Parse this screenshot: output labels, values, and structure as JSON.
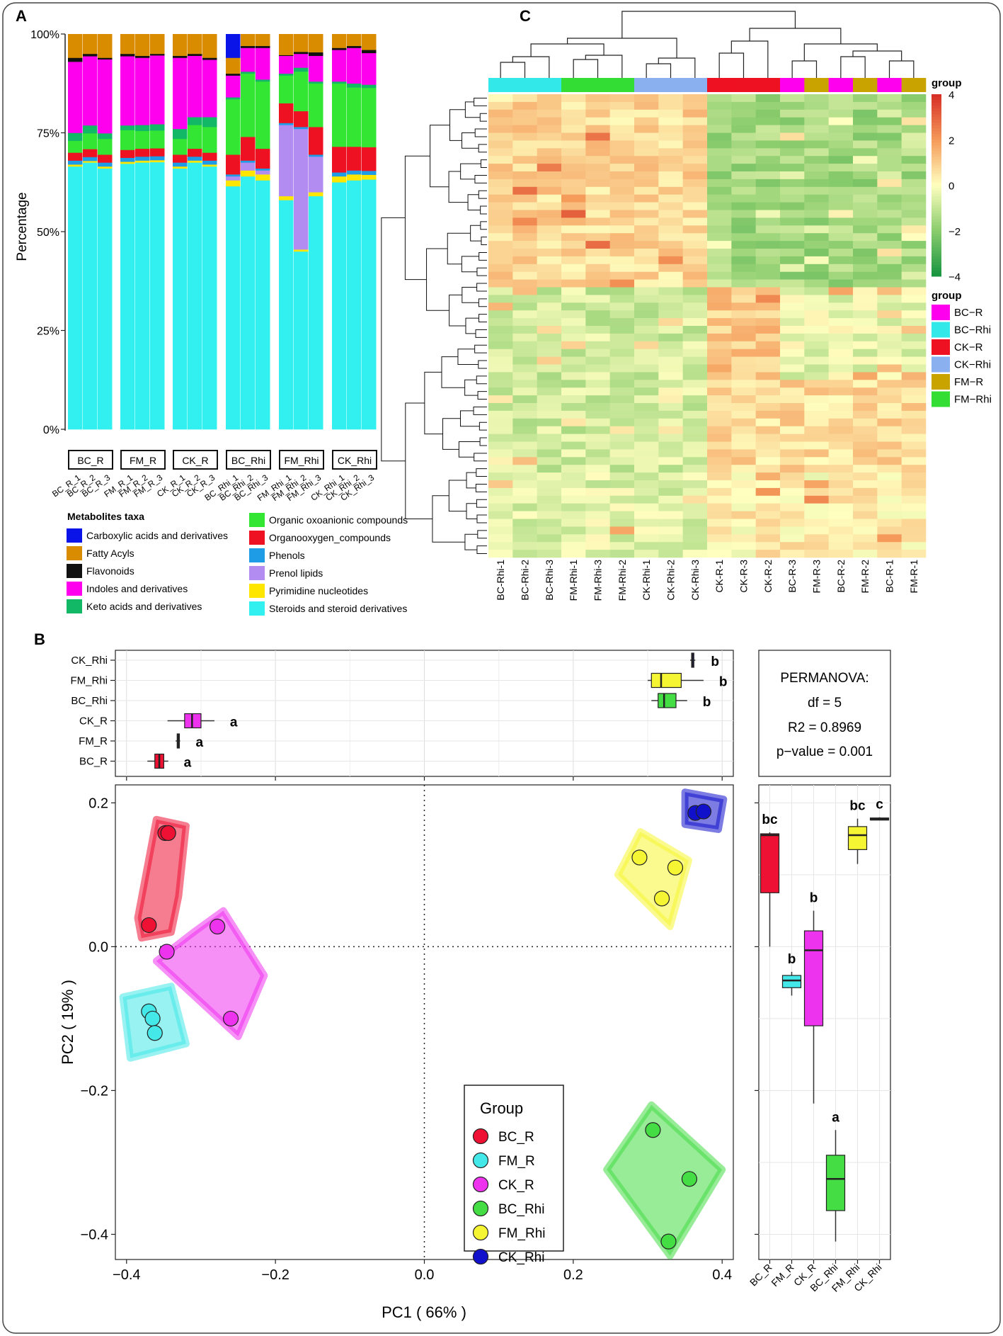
{
  "panels": {
    "a": "A",
    "b": "B",
    "c": "C"
  },
  "chart_data": [
    {
      "id": "A",
      "type": "bar",
      "subtype": "stacked-percent",
      "ylabel": "Percentage",
      "yticks": [
        "0%",
        "25%",
        "50%",
        "75%",
        "100%"
      ],
      "ylim": [
        0,
        100
      ],
      "groups": [
        {
          "name": "BC_R",
          "samples": [
            "BC_R_1",
            "BC_R_2",
            "BC_R_3"
          ]
        },
        {
          "name": "FM_R",
          "samples": [
            "FM_R_1",
            "FM_R_2",
            "FM_R_3"
          ]
        },
        {
          "name": "CK_R",
          "samples": [
            "CK_R_1",
            "CK_R_2",
            "CK_R_3"
          ]
        },
        {
          "name": "BC_Rhi",
          "samples": [
            "BC_Rhi_1",
            "BC_Rhi_2",
            "BC_Rhi_3"
          ]
        },
        {
          "name": "FM_Rhi",
          "samples": [
            "FM_Rhi_1",
            "FM_Rhi_2",
            "FM_Rhi_3"
          ]
        },
        {
          "name": "CK_Rhi",
          "samples": [
            "CK_Rhi_1",
            "CK_Rhi_2",
            "CK_Rhi_3"
          ]
        }
      ],
      "legend_title": "Metabolites taxa",
      "taxa": [
        {
          "name": "Carboxylic acids and derivatives",
          "color": "#0a14e8"
        },
        {
          "name": "Fatty Acyls",
          "color": "#d98c00"
        },
        {
          "name": "Flavonoids",
          "color": "#111111"
        },
        {
          "name": "Indoles and derivatives",
          "color": "#ff00ee"
        },
        {
          "name": "Keto acids and derivatives",
          "color": "#12b865"
        },
        {
          "name": "Organic oxoanionic compounds",
          "color": "#33e633"
        },
        {
          "name": "Organooxygen_compounds",
          "color": "#ee1122"
        },
        {
          "name": "Phenols",
          "color": "#1e9ce6"
        },
        {
          "name": "Prenol lipids",
          "color": "#b38cf2"
        },
        {
          "name": "Pyrimidine nucleotides",
          "color": "#ffe600"
        },
        {
          "name": "Steroids and steroid derivatives",
          "color": "#33f0f0"
        }
      ],
      "stack_order_bottom_to_top": [
        10,
        9,
        8,
        7,
        6,
        5,
        4,
        3,
        2,
        1,
        0
      ],
      "values_pct": [
        [
          0,
          6,
          1,
          18,
          2,
          3,
          2,
          1,
          0,
          0.5,
          66.5
        ],
        [
          0,
          5,
          0.6,
          17.5,
          2,
          4,
          2,
          1,
          0,
          0.4,
          67.5
        ],
        [
          0,
          6,
          0.4,
          18.7,
          1.4,
          4,
          2,
          1,
          0,
          0.5,
          66
        ],
        [
          0,
          5,
          0.6,
          17.5,
          1.2,
          5,
          2,
          1,
          0,
          0.5,
          67.2
        ],
        [
          0,
          5.5,
          0.5,
          17,
          1.5,
          4.5,
          2,
          1,
          0,
          0.5,
          67.5
        ],
        [
          0,
          5,
          0.4,
          17.4,
          1.6,
          4.5,
          2,
          1,
          0,
          0.5,
          67.6
        ],
        [
          0,
          5.5,
          0.5,
          18,
          2.5,
          4,
          2,
          1,
          0,
          0.5,
          66
        ],
        [
          0,
          5,
          0.5,
          15.5,
          2,
          6,
          2,
          1,
          0,
          0.5,
          67.5
        ],
        [
          0,
          6,
          0.5,
          14.5,
          2.5,
          6.5,
          2,
          1,
          0,
          0.5,
          66.5
        ],
        [
          6,
          4,
          0.5,
          5.5,
          0.5,
          14,
          5,
          0.5,
          1,
          1.5,
          61.5
        ],
        [
          0,
          3,
          0.5,
          6,
          0.5,
          16,
          6,
          0.5,
          2,
          1.5,
          64
        ],
        [
          0,
          3,
          0.5,
          8,
          0.5,
          17,
          5,
          0.5,
          1,
          1.5,
          63
        ],
        [
          0,
          5.3,
          0.2,
          4.5,
          0.5,
          7,
          5,
          0.5,
          18,
          1,
          58
        ],
        [
          0,
          4.5,
          0.5,
          3.5,
          1,
          10,
          4,
          0.5,
          30.5,
          0.5,
          45
        ],
        [
          0,
          4.6,
          0.9,
          6.5,
          0.5,
          11,
          7,
          0.5,
          9,
          1,
          59
        ],
        [
          0,
          3.5,
          0.5,
          8,
          0.5,
          16,
          6.5,
          1,
          0,
          1.5,
          62.5
        ],
        [
          0,
          3,
          0.5,
          9,
          1,
          15,
          6,
          1,
          0,
          1.5,
          63
        ],
        [
          0,
          4,
          0.8,
          8,
          0.8,
          15,
          6,
          1,
          0,
          1.2,
          63.2
        ]
      ]
    },
    {
      "id": "C",
      "type": "heatmap",
      "samples": [
        "BC-Rhi-1",
        "BC-Rhi-2",
        "BC-Rhi-3",
        "FM-Rhi-1",
        "FM-Rhi-3",
        "FM-Rhi-2",
        "CK-Rhi-1",
        "CK-Rhi-2",
        "CK-Rhi-3",
        "CK-R-1",
        "CK-R-3",
        "CK-R-2",
        "BC-R-3",
        "FM-R-3",
        "BC-R-2",
        "FM-R-2",
        "BC-R-1",
        "FM-R-1"
      ],
      "sample_groups": [
        "BC-Rhi",
        "BC-Rhi",
        "BC-Rhi",
        "FM-Rhi",
        "FM-Rhi",
        "FM-Rhi",
        "CK-Rhi",
        "CK-Rhi",
        "CK-Rhi",
        "CK-R",
        "CK-R",
        "CK-R",
        "BC-R",
        "FM-R",
        "BC-R",
        "FM-R",
        "BC-R",
        "FM-R"
      ],
      "colorbar_title": "group",
      "colorbar_ticks": [
        "4",
        "2",
        "0",
        "−2",
        "−4"
      ],
      "color_range": [
        -4,
        4
      ],
      "group_legend_title": "group",
      "group_legend": [
        {
          "name": "BC−R",
          "color": "#ff00ee"
        },
        {
          "name": "BC−Rhi",
          "color": "#33e8e8"
        },
        {
          "name": "CK−R",
          "color": "#ee1122"
        },
        {
          "name": "CK−Rhi",
          "color": "#8ab0f0"
        },
        {
          "name": "FM−R",
          "color": "#c9a400"
        },
        {
          "name": "FM−Rhi",
          "color": "#33dd33"
        }
      ],
      "row_blocks": [
        {
          "rows": 25,
          "pattern": "rhi-high"
        },
        {
          "rows": 12,
          "pattern": "ck-high"
        },
        {
          "rows": 12,
          "pattern": "r-high"
        },
        {
          "rows": 11,
          "pattern": "mixed"
        }
      ]
    },
    {
      "id": "B",
      "type": "scatter",
      "xlabel": "PC1 ( 66% )",
      "ylabel": "PC2 ( 19% )",
      "xticks": [
        "−0.4",
        "−0.2",
        "0.0",
        "0.2",
        "0.4"
      ],
      "xtick_values": [
        -0.4,
        -0.2,
        0.0,
        0.2,
        0.4
      ],
      "yticks": [
        "0.2",
        "0.0",
        "−0.2",
        "−0.4"
      ],
      "ytick_values": [
        0.2,
        0.0,
        -0.2,
        -0.4
      ],
      "xlim": [
        -0.415,
        0.415
      ],
      "ylim": [
        -0.435,
        0.225
      ],
      "legend_title": "Group",
      "groups": [
        {
          "name": "BC_R",
          "color": "#ee1133",
          "points": [
            [
              -0.348,
              0.158
            ],
            [
              -0.344,
              0.158
            ],
            [
              -0.37,
              0.03
            ]
          ],
          "hull": [
            [
              -0.36,
              0.177
            ],
            [
              -0.32,
              0.168
            ],
            [
              -0.33,
              0.07
            ],
            [
              -0.34,
              0.02
            ],
            [
              -0.38,
              0.012
            ],
            [
              -0.385,
              0.04
            ]
          ]
        },
        {
          "name": "FM_R",
          "color": "#44e8e8",
          "points": [
            [
              -0.37,
              -0.09
            ],
            [
              -0.365,
              -0.1
            ],
            [
              -0.362,
              -0.12
            ]
          ],
          "hull": [
            [
              -0.34,
              -0.055
            ],
            [
              -0.32,
              -0.135
            ],
            [
              -0.395,
              -0.155
            ],
            [
              -0.405,
              -0.07
            ]
          ]
        },
        {
          "name": "CK_R",
          "color": "#ee33ee",
          "points": [
            [
              -0.278,
              0.028
            ],
            [
              -0.346,
              -0.007
            ],
            [
              -0.26,
              -0.1
            ]
          ],
          "hull": [
            [
              -0.27,
              0.05
            ],
            [
              -0.215,
              -0.04
            ],
            [
              -0.25,
              -0.125
            ],
            [
              -0.36,
              -0.02
            ],
            [
              -0.31,
              0.02
            ]
          ]
        },
        {
          "name": "BC_Rhi",
          "color": "#44dd44",
          "points": [
            [
              0.307,
              -0.255
            ],
            [
              0.356,
              -0.323
            ],
            [
              0.328,
              -0.41
            ]
          ],
          "hull": [
            [
              0.305,
              -0.22
            ],
            [
              0.4,
              -0.31
            ],
            [
              0.33,
              -0.43
            ],
            [
              0.245,
              -0.31
            ]
          ]
        },
        {
          "name": "FM_Rhi",
          "color": "#f5f533",
          "points": [
            [
              0.289,
              0.124
            ],
            [
              0.337,
              0.11
            ],
            [
              0.319,
              0.067
            ]
          ],
          "hull": [
            [
              0.29,
              0.16
            ],
            [
              0.355,
              0.12
            ],
            [
              0.33,
              0.028
            ],
            [
              0.26,
              0.1
            ]
          ]
        },
        {
          "name": "CK_Rhi",
          "color": "#1111cc",
          "points": [
            [
              0.364,
              0.186
            ],
            [
              0.375,
              0.188
            ]
          ],
          "hull": [
            [
              0.35,
              0.215
            ],
            [
              0.402,
              0.205
            ],
            [
              0.395,
              0.163
            ],
            [
              0.35,
              0.17
            ]
          ]
        }
      ],
      "top_box": {
        "order_top_to_bottom": [
          "CK_Rhi",
          "FM_Rhi",
          "BC_Rhi",
          "CK_R",
          "FM_R",
          "BC_R"
        ],
        "boxes": [
          {
            "group": "CK_Rhi",
            "min": 0.357,
            "q1": 0.359,
            "median": 0.36,
            "q3": 0.362,
            "max": 0.364,
            "letter": "b",
            "color": "#2222aa"
          },
          {
            "group": "FM_Rhi",
            "min": 0.3,
            "q1": 0.305,
            "median": 0.318,
            "q3": 0.345,
            "max": 0.375,
            "letter": "b",
            "color": "#f5f533"
          },
          {
            "group": "BC_Rhi",
            "min": 0.305,
            "q1": 0.314,
            "median": 0.322,
            "q3": 0.338,
            "max": 0.353,
            "letter": "b",
            "color": "#44dd44"
          },
          {
            "group": "CK_R",
            "min": -0.345,
            "q1": -0.322,
            "median": -0.312,
            "q3": -0.3,
            "max": -0.282,
            "letter": "a",
            "color": "#ee33ee"
          },
          {
            "group": "FM_R",
            "min": -0.334,
            "q1": -0.332,
            "median": -0.331,
            "q3": -0.329,
            "max": -0.328,
            "letter": "a",
            "color": "#333333"
          },
          {
            "group": "BC_R",
            "min": -0.372,
            "q1": -0.362,
            "median": -0.356,
            "q3": -0.35,
            "max": -0.344,
            "letter": "a",
            "color": "#ee1133"
          }
        ]
      },
      "right_box": {
        "categories": [
          "BC_R",
          "FM_R",
          "CK_R",
          "BC_Rhi",
          "FM_Rhi",
          "CK_Rhi"
        ],
        "boxes": [
          {
            "group": "BC_R",
            "min": 0.0,
            "q1": 0.075,
            "median": 0.155,
            "q3": 0.157,
            "max": 0.159,
            "letter": "bc",
            "color": "#ee1133"
          },
          {
            "group": "FM_R",
            "min": -0.068,
            "q1": -0.057,
            "median": -0.047,
            "q3": -0.04,
            "max": -0.035,
            "letter": "b",
            "color": "#44e8e8"
          },
          {
            "group": "CK_R",
            "min": -0.218,
            "q1": -0.11,
            "median": -0.005,
            "q3": 0.022,
            "max": 0.05,
            "letter": "b",
            "color": "#ee33ee"
          },
          {
            "group": "BC_Rhi",
            "min": -0.41,
            "q1": -0.367,
            "median": -0.323,
            "q3": -0.29,
            "max": -0.255,
            "letter": "a",
            "color": "#44dd44"
          },
          {
            "group": "FM_Rhi",
            "min": 0.115,
            "q1": 0.135,
            "median": 0.155,
            "q3": 0.167,
            "max": 0.178,
            "letter": "bc",
            "color": "#f5f533"
          },
          {
            "group": "CK_Rhi",
            "min": 0.177,
            "q1": 0.178,
            "median": 0.178,
            "q3": 0.179,
            "max": 0.18,
            "letter": "c",
            "color": "#222222"
          }
        ]
      },
      "permanova": {
        "title": "PERMANOVA:",
        "df": "df = 5",
        "r2": "R2 = 0.8969",
        "p": "p−value = 0.001"
      }
    }
  ]
}
